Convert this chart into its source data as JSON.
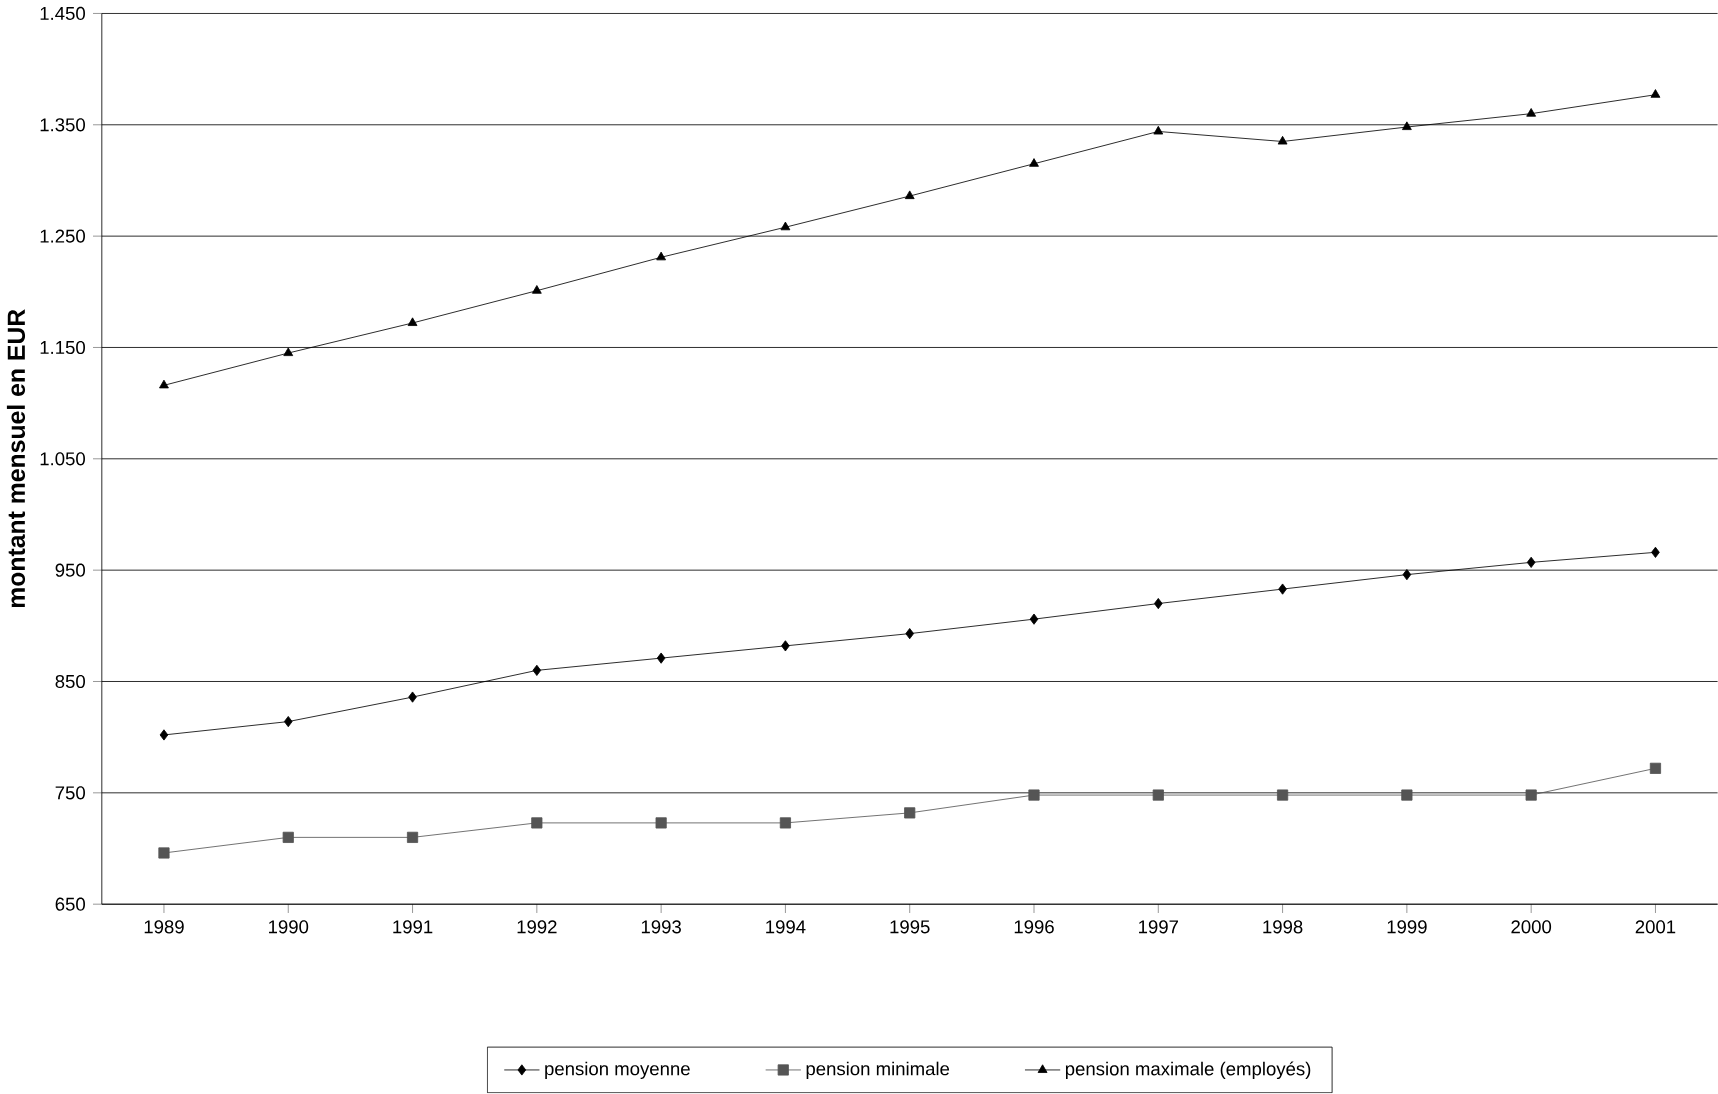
{
  "chart_data": {
    "type": "line",
    "ylabel": "montant mensuel en EUR",
    "categories": [
      "1989",
      "1990",
      "1991",
      "1992",
      "1993",
      "1994",
      "1995",
      "1996",
      "1997",
      "1998",
      "1999",
      "2000",
      "2001"
    ],
    "series": [
      {
        "name": "pension moyenne",
        "color": "#000000",
        "marker": "diamond",
        "values": [
          802,
          814,
          836,
          860,
          871,
          882,
          893,
          906,
          920,
          933,
          946,
          957,
          966
        ]
      },
      {
        "name": "pension minimale",
        "color": "#555555",
        "marker": "square",
        "values": [
          696,
          710,
          710,
          723,
          723,
          723,
          732,
          748,
          748,
          748,
          748,
          748,
          772
        ]
      },
      {
        "name": "pension maximale (employés)",
        "color": "#000000",
        "marker": "triangle",
        "values": [
          1116,
          1145,
          1172,
          1201,
          1231,
          1258,
          1286,
          1315,
          1344,
          1335,
          1348,
          1360,
          1377
        ]
      }
    ],
    "ylim": [
      650,
      1450
    ],
    "yticks": [
      {
        "value": 650,
        "label": "650"
      },
      {
        "value": 750,
        "label": "750"
      },
      {
        "value": 850,
        "label": "850"
      },
      {
        "value": 950,
        "label": "950"
      },
      {
        "value": 1050,
        "label": "1.050"
      },
      {
        "value": 1150,
        "label": "1.150"
      },
      {
        "value": 1250,
        "label": "1.250"
      },
      {
        "value": 1350,
        "label": "1.350"
      },
      {
        "value": 1450,
        "label": "1.450"
      }
    ],
    "grid": "y",
    "legend": "bottom",
    "line_style": "solid"
  }
}
